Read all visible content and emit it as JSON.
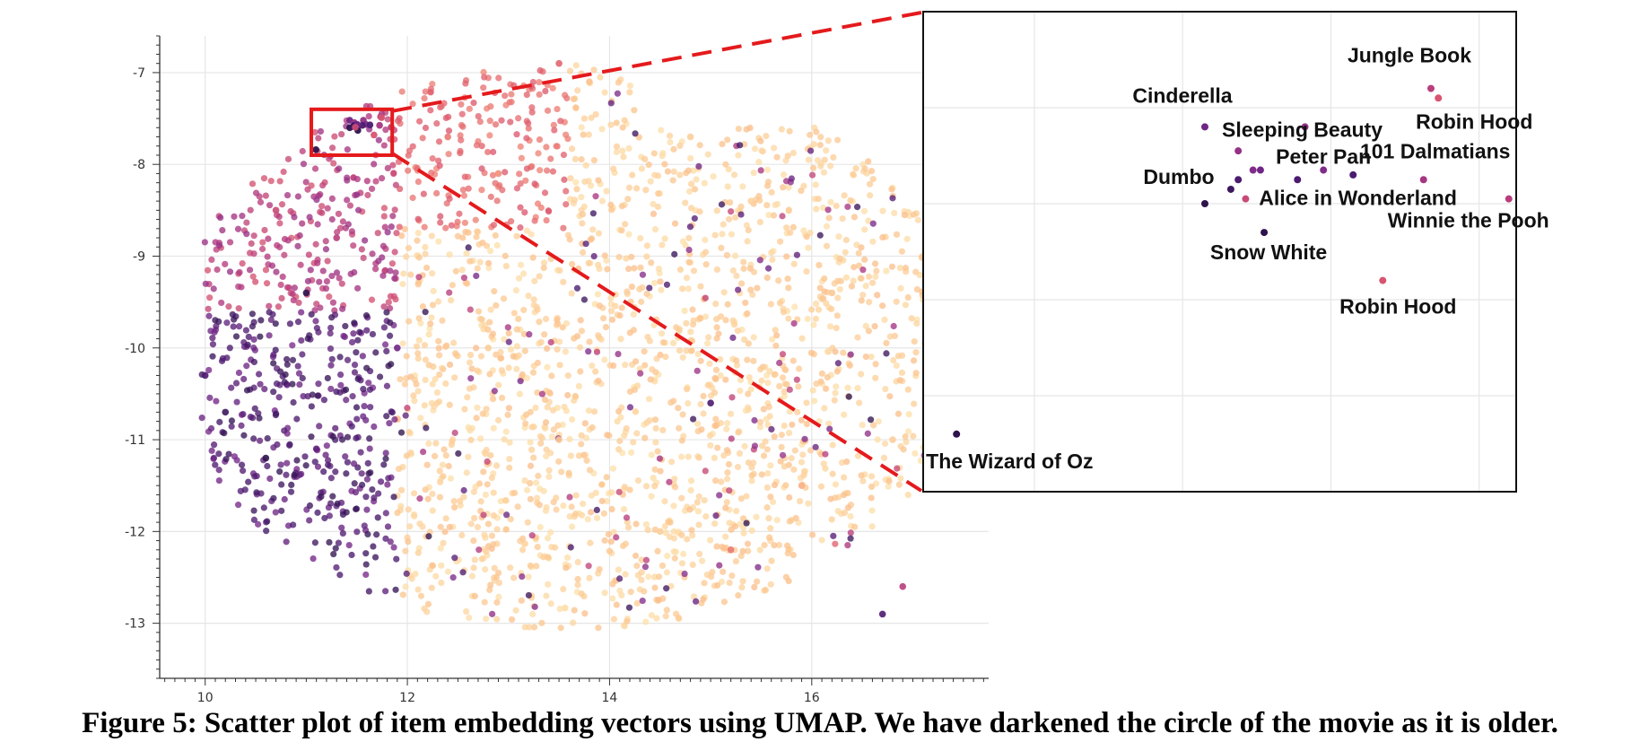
{
  "caption": "Figure 5: Scatter plot of item embedding vectors using UMAP. We have darkened the circle of the movie as it is older.",
  "colors": {
    "highlight": "#e41a1c",
    "grid": "#e6e6e6",
    "axis": "#333333",
    "age_scale": [
      "#fde6b2",
      "#fbc48f",
      "#f5937a",
      "#dd5a6e",
      "#b2397f",
      "#7b2a8c",
      "#4a1a6e",
      "#1f0f3a"
    ]
  },
  "chart_data": [
    {
      "type": "scatter",
      "title": "",
      "xlabel": "",
      "ylabel": "",
      "xlim": [
        9.55,
        17.75
      ],
      "ylim": [
        -13.6,
        -6.6
      ],
      "x_ticks": [
        10,
        12,
        14,
        16
      ],
      "y_ticks": [
        -7,
        -8,
        -9,
        -10,
        -11,
        -12,
        -13
      ],
      "x_tick_labels": [
        "10",
        "12",
        "14",
        "16"
      ],
      "y_tick_labels": [
        "-7",
        "-8",
        "-9",
        "-10",
        "-11",
        "-12",
        "-13"
      ],
      "grid": true,
      "color_encoding": "darker circle = older movie",
      "zoom_region": {
        "x": [
          11.05,
          11.85
        ],
        "y": [
          -7.9,
          -7.4
        ]
      },
      "sample_points": [
        {
          "x": 10.0,
          "y": -10.3,
          "age": 0.85
        },
        {
          "x": 10.2,
          "y": -10.7,
          "age": 0.9
        },
        {
          "x": 10.6,
          "y": -11.2,
          "age": 0.95
        },
        {
          "x": 11.1,
          "y": -11.1,
          "age": 0.8
        },
        {
          "x": 11.9,
          "y": -10.0,
          "age": 0.75
        },
        {
          "x": 10.7,
          "y": -8.5,
          "age": 0.5
        },
        {
          "x": 11.3,
          "y": -8.8,
          "age": 0.55
        },
        {
          "x": 12.4,
          "y": -7.7,
          "age": 0.35
        },
        {
          "x": 12.9,
          "y": -8.1,
          "age": 0.3
        },
        {
          "x": 13.5,
          "y": -6.9,
          "age": 0.4
        },
        {
          "x": 13.8,
          "y": -7.1,
          "age": 0.15
        },
        {
          "x": 14.8,
          "y": -7.7,
          "age": 0.1
        },
        {
          "x": 15.4,
          "y": -8.4,
          "age": 0.08
        },
        {
          "x": 16.2,
          "y": -9.4,
          "age": 0.12
        },
        {
          "x": 12.8,
          "y": -10.0,
          "age": 0.1
        },
        {
          "x": 13.5,
          "y": -11.0,
          "age": 0.12
        },
        {
          "x": 14.5,
          "y": -12.0,
          "age": 0.1
        },
        {
          "x": 15.2,
          "y": -12.2,
          "age": 0.35
        },
        {
          "x": 16.9,
          "y": -12.6,
          "age": 0.55
        },
        {
          "x": 16.7,
          "y": -12.9,
          "age": 0.85
        },
        {
          "x": 15.9,
          "y": -11.5,
          "age": 0.2
        },
        {
          "x": 15.0,
          "y": -10.6,
          "age": 0.85
        },
        {
          "x": 16.8,
          "y": -11.0,
          "age": 0.1
        },
        {
          "x": 11.0,
          "y": -9.4,
          "age": 0.95
        }
      ]
    },
    {
      "type": "scatter",
      "title": "",
      "xlabel": "",
      "ylabel": "",
      "xlim": [
        11.05,
        11.85
      ],
      "ylim": [
        -7.9,
        -7.4
      ],
      "grid": true,
      "axes_shown": false,
      "points": [
        {
          "label": "Jungle Book",
          "x": 11.735,
          "y": -7.48,
          "age": 0.55
        },
        {
          "label": "Robin Hood",
          "x": 11.745,
          "y": -7.49,
          "age": 0.45
        },
        {
          "label": "Cinderella",
          "x": 11.43,
          "y": -7.52,
          "age": 0.75
        },
        {
          "label": "Sleeping Beauty",
          "x": 11.565,
          "y": -7.52,
          "age": 0.65
        },
        {
          "label": "101 Dalmatians",
          "x": 11.725,
          "y": -7.575,
          "age": 0.6
        },
        {
          "label": "Peter Pan",
          "x": 11.59,
          "y": -7.565,
          "age": 0.7
        },
        {
          "label": "Alice in Wonderland",
          "x": 11.555,
          "y": -7.575,
          "age": 0.85
        },
        {
          "label": "Dumbo",
          "x": 11.43,
          "y": -7.6,
          "age": 0.95
        },
        {
          "label": "Winnie the Pooh",
          "x": 11.84,
          "y": -7.595,
          "age": 0.55
        },
        {
          "label": "Snow White",
          "x": 11.51,
          "y": -7.63,
          "age": 0.95
        },
        {
          "label": "Robin Hood",
          "x": 11.67,
          "y": -7.68,
          "age": 0.45
        },
        {
          "label": "The Wizard of Oz",
          "x": 11.095,
          "y": -7.84,
          "age": 0.95
        }
      ],
      "unlabeled_points": [
        {
          "x": 11.475,
          "y": -7.545,
          "age": 0.65
        },
        {
          "x": 11.495,
          "y": -7.565,
          "age": 0.7
        },
        {
          "x": 11.475,
          "y": -7.575,
          "age": 0.85
        },
        {
          "x": 11.465,
          "y": -7.585,
          "age": 0.9
        },
        {
          "x": 11.505,
          "y": -7.565,
          "age": 0.75
        },
        {
          "x": 11.485,
          "y": -7.595,
          "age": 0.5
        },
        {
          "x": 11.63,
          "y": -7.57,
          "age": 0.85
        }
      ]
    }
  ]
}
